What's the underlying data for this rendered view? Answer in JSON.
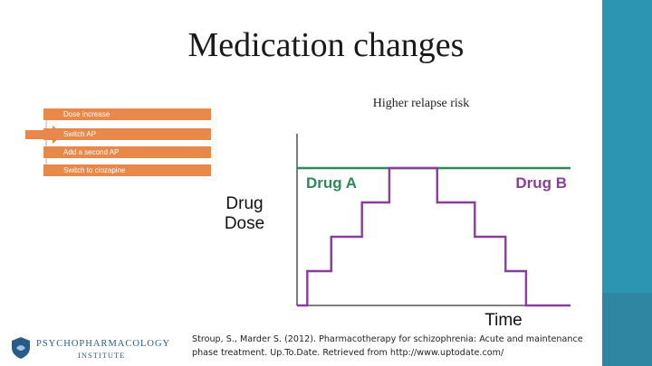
{
  "slide": {
    "title": "Medication changes",
    "risk_label": "Higher relapse risk",
    "steps": [
      "Dose increase",
      "Switch AP",
      "Add a second AP",
      "Switch to clozapine"
    ],
    "logo": {
      "line1": "PSYCHOPHARMACOLOGY",
      "line2": "INSTITUTE"
    },
    "citation": {
      "line1": "Stroup, S., Marder S. (2012). Pharmacotherapy for schizophrenia: Acute and maintenance",
      "line2": "phase treatment. Up.To.Date. Retrieved from http://www.uptodate.com/"
    }
  },
  "colors": {
    "accent_bar": "#2b95b2",
    "step_orange": "#e8884a",
    "drug_a": "#2e8a5a",
    "drug_b": "#8a3d9a"
  },
  "chart_data": {
    "type": "line",
    "xlabel": "Time",
    "ylabel": "Drug Dose",
    "series": [
      {
        "name": "Drug A",
        "x": [
          0,
          8
        ],
        "y": [
          4,
          4
        ]
      },
      {
        "name": "Drug B",
        "x": [
          0,
          0.3,
          0.3,
          1.0,
          1.0,
          1.9,
          1.9,
          2.7,
          2.7,
          4.1,
          4.1,
          5.2,
          5.2,
          6.1,
          6.1,
          6.7,
          6.7,
          8
        ],
        "y": [
          0,
          0,
          1,
          1,
          2,
          2,
          3,
          3,
          4,
          4,
          3,
          3,
          2,
          2,
          1,
          1,
          0,
          0
        ]
      }
    ],
    "xlim": [
      0,
      8
    ],
    "ylim": [
      0,
      5
    ],
    "grid": false
  }
}
